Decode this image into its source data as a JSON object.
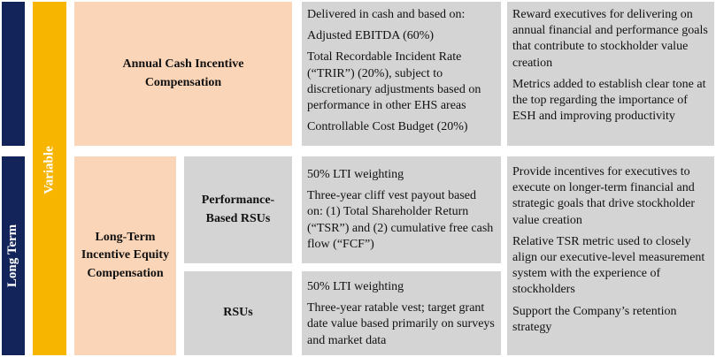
{
  "labels": {
    "long_term": "Long Term",
    "variable": "Variable"
  },
  "annual": {
    "title_line1": "Annual Cash Incentive",
    "title_line2": "Compensation",
    "description": [
      "Delivered in cash and based on:",
      "Adjusted EBITDA (60%)",
      "Total Recordable Incident Rate (“TRIR”) (20%), subject to discretionary adjustments based on performance in other EHS areas",
      "Controllable Cost Budget (20%)"
    ],
    "objective": [
      "Reward executives for delivering on annual financial and performance goals that contribute to stockholder value creation",
      "Metrics added to establish clear tone at the top regarding the importance of ESH and improving productivity"
    ]
  },
  "long_term": {
    "title_line1": "Long-Term",
    "title_line2": "Incentive Equity",
    "title_line3": "Compensation",
    "psu": {
      "label_line1": "Performance-",
      "label_line2": "Based RSUs",
      "description": [
        "50% LTI weighting",
        "Three-year cliff vest payout based on: (1) Total Shareholder Return (“TSR”) and (2) cumulative free cash flow (“FCF”)"
      ]
    },
    "rsu": {
      "label": "RSUs",
      "description": [
        "50% LTI weighting",
        "Three-year ratable vest; target grant date value based primarily on surveys and market data"
      ]
    },
    "objective": [
      "Provide incentives for executives to execute on longer-term financial and strategic goals that drive stockholder value creation",
      "Relative TSR metric used to closely align our executive-level measurement system with the experience of stockholders",
      "Support the Company’s retention strategy"
    ]
  }
}
